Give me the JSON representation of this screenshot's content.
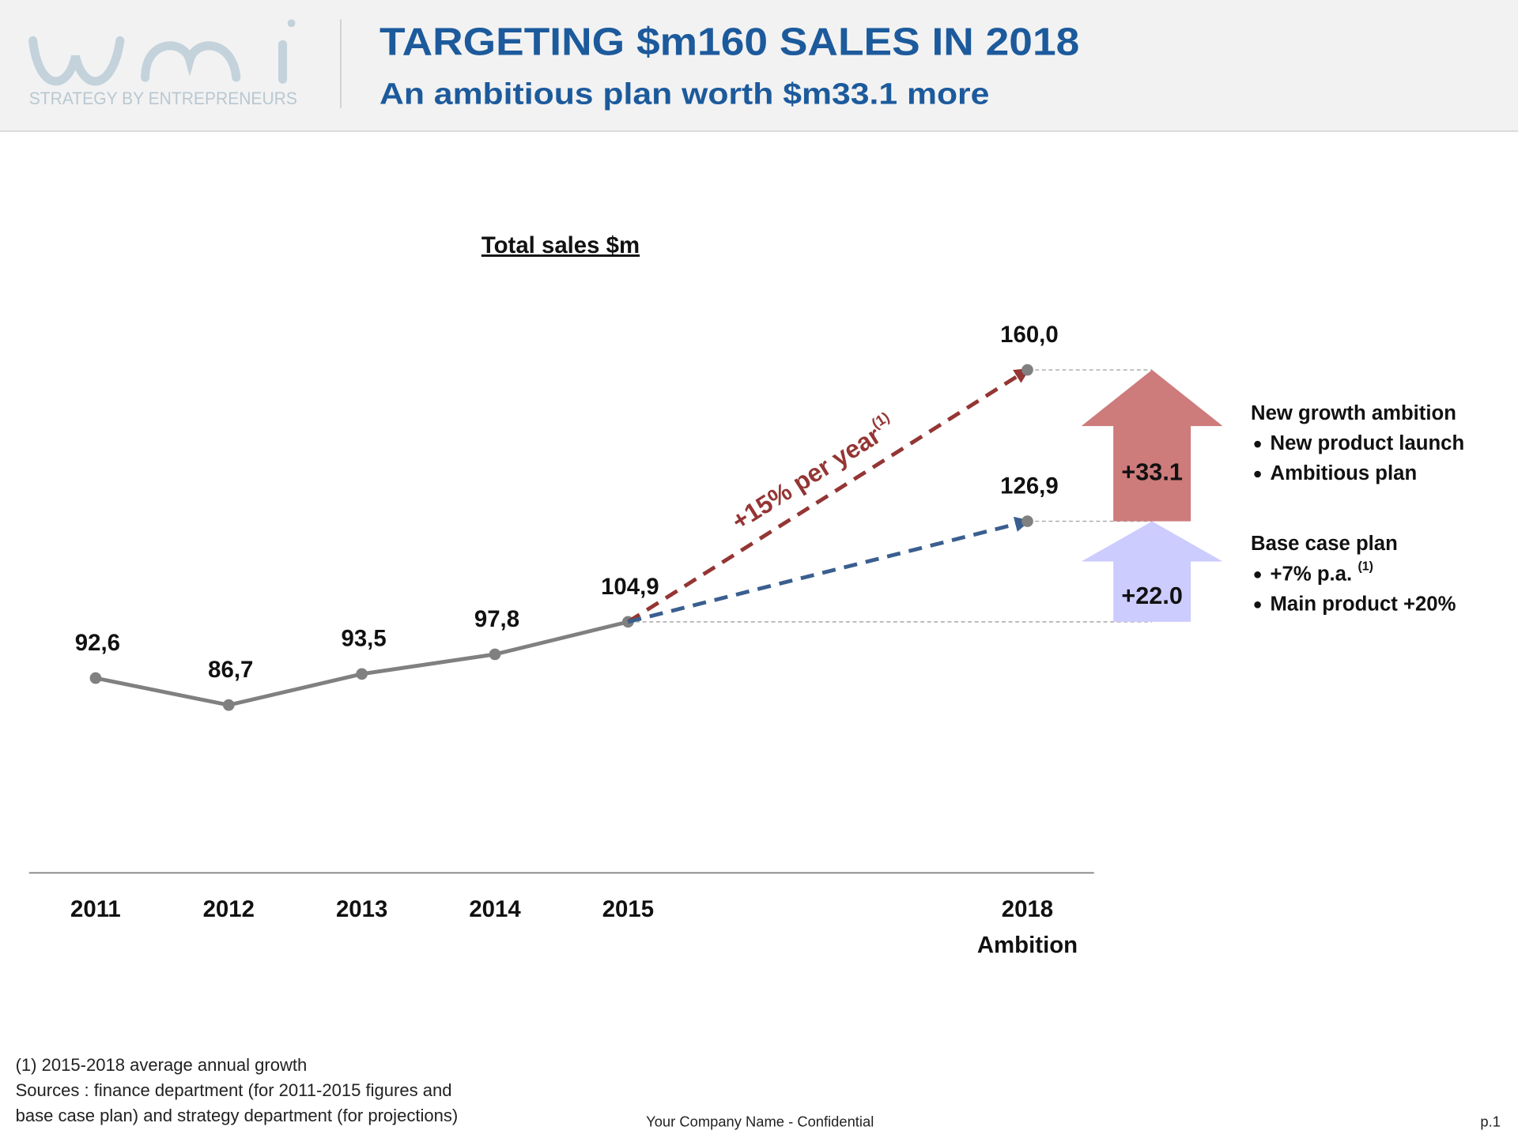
{
  "header": {
    "logo_tagline": "STRATEGY BY ENTREPRENEURS",
    "title": "TARGETING $m160 SALES IN 2018",
    "subtitle": "An ambitious plan worth $m33.1 more"
  },
  "chart_data": {
    "type": "line",
    "title": "Total sales $m",
    "xlim": [
      2010.5,
      2018.5
    ],
    "xticks": [
      2011,
      2012,
      2013,
      2014,
      2015,
      {
        "value": 2018,
        "label": "2018 Ambition"
      }
    ],
    "ylim": [
      50,
      170
    ],
    "series": [
      {
        "color": "#808080",
        "dashed": false,
        "x": [
          2011,
          2012,
          2013,
          2014,
          2015
        ],
        "values": [
          92.6,
          86.7,
          93.5,
          97.8,
          104.9
        ],
        "value_labels": [
          "92,6",
          "86,7",
          "93,5",
          "97,8",
          "104,9"
        ]
      },
      {
        "color": "#943634",
        "dashed": true,
        "x": [
          2015,
          2018
        ],
        "values": [
          104.9,
          160.0
        ],
        "value_labels": [
          null,
          "160,0"
        ]
      },
      {
        "color": "#3a5f8f",
        "dashed": true,
        "x": [
          2015,
          2018
        ],
        "values": [
          104.9,
          126.9
        ],
        "value_labels": [
          null,
          "126,9"
        ]
      }
    ],
    "annotations": [
      {
        "text": "+15% per year",
        "superscript": "(1)",
        "color": "#943634"
      }
    ],
    "steps": [
      {
        "label": "+33.1",
        "value": 33.1,
        "color": "#cd7b7b"
      },
      {
        "label": "+22.0",
        "value": 22.0,
        "color": "#ccccff"
      }
    ]
  },
  "notes": [
    {
      "title": "New growth ambition",
      "bullets": [
        {
          "text": "New product launch"
        },
        {
          "text": "Ambitious plan"
        }
      ]
    },
    {
      "title": "Base case plan",
      "bullets": [
        {
          "text": "+7% p.a.",
          "superscript": "(1)"
        },
        {
          "text": "Main product +20%"
        }
      ]
    }
  ],
  "footnotes": [
    "(1) 2015-2018 average annual growth",
    "Sources : finance department (for 2011-2015 figures and",
    "base case plan) and strategy department  (for projections)"
  ],
  "footer": "Your Company Name - Confidential",
  "page": "p.1"
}
